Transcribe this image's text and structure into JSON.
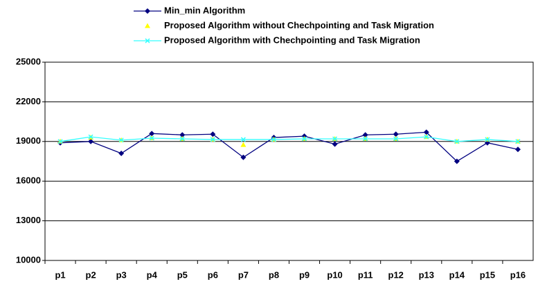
{
  "chart_data": {
    "type": "line",
    "categories": [
      "p1",
      "p2",
      "p3",
      "p4",
      "p5",
      "p6",
      "p7",
      "p8",
      "p9",
      "p10",
      "p11",
      "p12",
      "p13",
      "p14",
      "p15",
      "p16"
    ],
    "series": [
      {
        "name": "Min_min Algorithm",
        "color": "#000080",
        "marker": "diamond",
        "line": true,
        "values": [
          18900,
          19000,
          18100,
          19600,
          19500,
          19550,
          17800,
          19300,
          19400,
          18800,
          19500,
          19550,
          19700,
          17500,
          18900,
          18400
        ]
      },
      {
        "name": "Proposed Algorithm without Chechpointing and Task Migration",
        "color": "#ffff00",
        "marker": "triangle",
        "line": false,
        "values": [
          19000,
          19300,
          19100,
          19250,
          19200,
          19150,
          18750,
          19150,
          19200,
          19200,
          19200,
          19200,
          19350,
          19000,
          19150,
          19000
        ]
      },
      {
        "name": "Proposed Algorithm with Chechpointing and Task Migration",
        "color": "#33ffff",
        "marker": "x",
        "line": true,
        "values": [
          19000,
          19350,
          19100,
          19250,
          19200,
          19150,
          19150,
          19150,
          19200,
          19200,
          19200,
          19200,
          19350,
          19000,
          19150,
          19000
        ]
      }
    ],
    "ylim": [
      10000,
      25000
    ],
    "yticks": [
      10000,
      13000,
      16000,
      19000,
      22000,
      25000
    ],
    "grid": true
  }
}
